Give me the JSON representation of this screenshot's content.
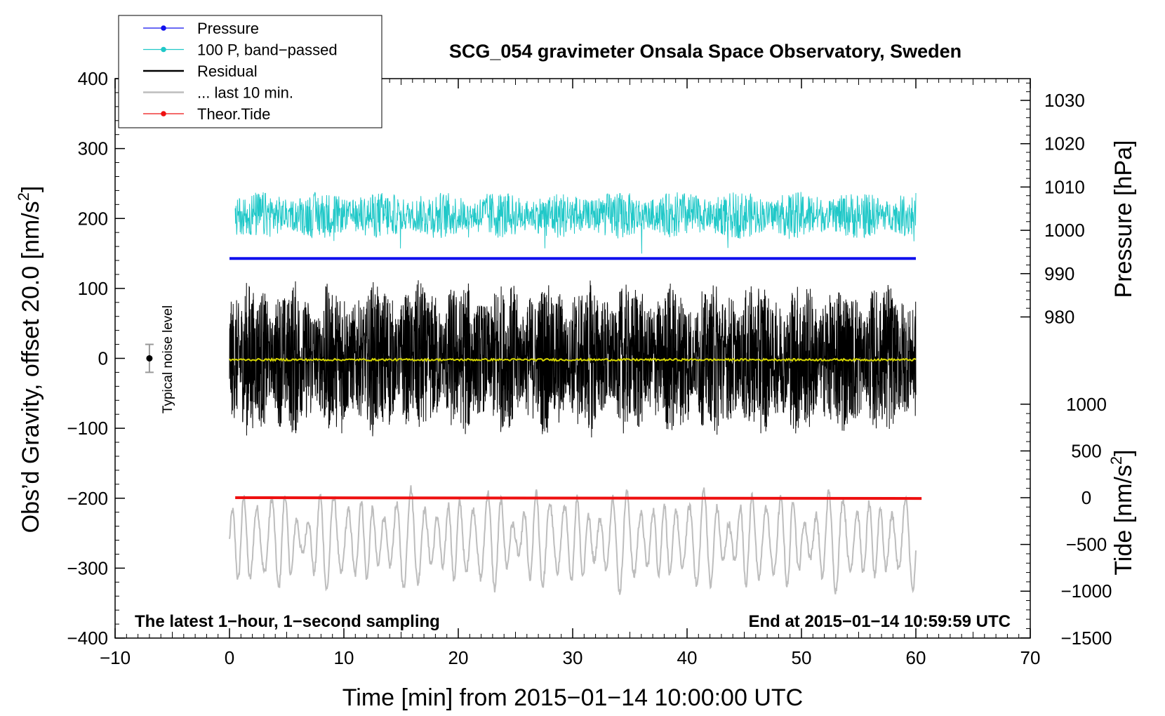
{
  "chart_data": {
    "type": "line",
    "title": "SCG_054 gravimeter Onsala Space Observatory, Sweden",
    "xlabel": "Time [min] from 2015−01−14 10:00:00 UTC",
    "ylabel_left": "Obs’d Gravity, offset 20.0 [nm/s",
    "ylabel_left_sup": "2",
    "ylabel_left_end": "]",
    "ylabel_pressure": "Pressure [hPa]",
    "ylabel_tide": "Tide [nm/s",
    "ylabel_tide_sup": "2",
    "ylabel_tide_end": "]",
    "xlim": [
      -10,
      70
    ],
    "ylim_left": [
      -400,
      400
    ],
    "x_ticks": [
      "−10",
      "0",
      "10",
      "20",
      "30",
      "40",
      "50",
      "60",
      "70"
    ],
    "x_tick_values": [
      -10,
      0,
      10,
      20,
      30,
      40,
      50,
      60,
      70
    ],
    "y_left_ticks": [
      "400",
      "300",
      "200",
      "100",
      "0",
      "−100",
      "−200",
      "−300",
      "−400"
    ],
    "y_left_tick_values": [
      400,
      300,
      200,
      100,
      0,
      -100,
      -200,
      -300,
      -400
    ],
    "pressure_ticks": [
      "1030",
      "1020",
      "1010",
      "1000",
      "990",
      "980"
    ],
    "pressure_tick_values": [
      1030,
      1020,
      1010,
      1000,
      990,
      980
    ],
    "tide_ticks": [
      "1000",
      "500",
      "0",
      "−500",
      "−1000",
      "−1500"
    ],
    "tide_tick_values": [
      1000,
      500,
      0,
      -500,
      -1000,
      -1500
    ],
    "series": [
      {
        "name": "Pressure",
        "color": "#1010ee",
        "level_hpa": 993.5,
        "x_range": [
          0,
          60
        ]
      },
      {
        "name": "100 P, band−passed",
        "color": "#20c8c8",
        "center_gravity": 205,
        "amplitude_typical": 20,
        "x_range": [
          0.5,
          60
        ]
      },
      {
        "name": "Residual",
        "color": "#000000",
        "center_gravity": 0,
        "amplitude_typical": 80,
        "x_range": [
          0,
          60
        ]
      },
      {
        "name": "... last 10 min.",
        "color": "#bdbdbd",
        "center_gravity": -260,
        "amplitude_typical": 60,
        "x_range": [
          0,
          60
        ]
      },
      {
        "name": "Theor.Tide",
        "color": "#ee1010",
        "level_tide": 0,
        "x_range": [
          0.5,
          60.5
        ]
      },
      {
        "name": "mean residual",
        "color": "#d6d600",
        "center_gravity": -2,
        "x_range": [
          0,
          60
        ]
      }
    ],
    "noise_bar": {
      "x": -7,
      "center": 0,
      "half_range": 20,
      "label": "Typical noise level"
    },
    "annotations": {
      "left": "The latest 1−hour, 1−second sampling",
      "right": "End at 2015−01−14 10:59:59 UTC"
    },
    "legend": {
      "placement": "top-left",
      "entries": [
        {
          "label": "Pressure",
          "color": "#1010ee",
          "style": "line-dot"
        },
        {
          "label": "100 P, band−passed",
          "color": "#20c8c8",
          "style": "line-dot"
        },
        {
          "label": "Residual",
          "color": "#000000",
          "style": "line"
        },
        {
          "label": "... last 10 min.",
          "color": "#bdbdbd",
          "style": "line"
        },
        {
          "label": "Theor.Tide",
          "color": "#ee1010",
          "style": "line-dot"
        }
      ]
    }
  }
}
